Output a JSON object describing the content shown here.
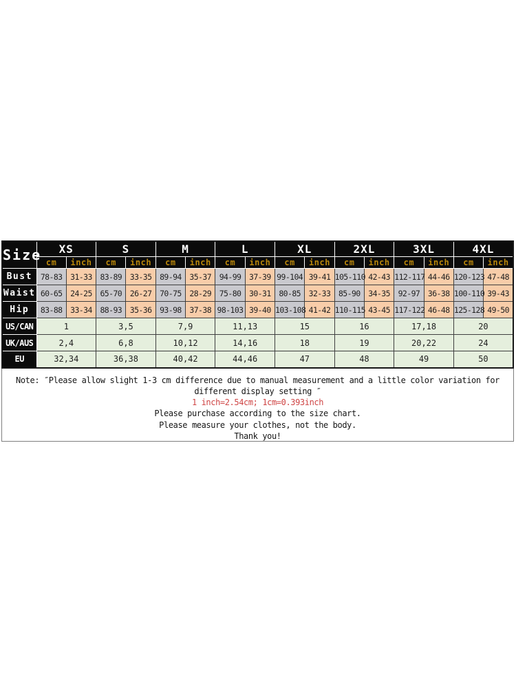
{
  "table": {
    "corner_label": "Size",
    "unit_labels": {
      "cm": "cm",
      "inch": "inch"
    },
    "sizes": [
      "XS",
      "S",
      "M",
      "L",
      "XL",
      "2XL",
      "3XL",
      "4XL"
    ],
    "measurements": [
      {
        "label": "Bust",
        "cm": [
          "78-83",
          "83-89",
          "89-94",
          "94-99",
          "99-104",
          "105-110",
          "112-117",
          "120-123"
        ],
        "inch": [
          "31-33",
          "33-35",
          "35-37",
          "37-39",
          "39-41",
          "42-43",
          "44-46",
          "47-48"
        ]
      },
      {
        "label": "Waist",
        "cm": [
          "60-65",
          "65-70",
          "70-75",
          "75-80",
          "80-85",
          "85-90",
          "92-97",
          "100-110"
        ],
        "inch": [
          "24-25",
          "26-27",
          "28-29",
          "30-31",
          "32-33",
          "34-35",
          "36-38",
          "39-43"
        ]
      },
      {
        "label": "Hip",
        "cm": [
          "83-88",
          "88-93",
          "93-98",
          "98-103",
          "103-108",
          "110-115",
          "117-122",
          "125-128"
        ],
        "inch": [
          "33-34",
          "35-36",
          "37-38",
          "39-40",
          "41-42",
          "43-45",
          "46-48",
          "49-50"
        ]
      }
    ],
    "regions": [
      {
        "label": "US/CAN",
        "values": [
          "1",
          "3,5",
          "7,9",
          "11,13",
          "15",
          "16",
          "17,18",
          "20"
        ]
      },
      {
        "label": "UK/AUS",
        "values": [
          "2,4",
          "6,8",
          "10,12",
          "14,16",
          "18",
          "19",
          "20,22",
          "24"
        ]
      },
      {
        "label": "EU",
        "values": [
          "32,34",
          "36,38",
          "40,42",
          "44,46",
          "47",
          "48",
          "49",
          "50"
        ]
      }
    ]
  },
  "note": {
    "lines": [
      "Note: ″Please allow slight 1-3 cm difference due to manual measurement and a little color variation for",
      "different display setting ″",
      "1 inch=2.54cm; 1cm=0.393inch",
      "Please purchase according to the size chart.",
      "Please measure your clothes, not the body.",
      "Thank you!"
    ]
  },
  "colors": {
    "bg_black": "#0b0b0b",
    "unit_gold": "#b8860b",
    "cm_gray": "#c9c9ce",
    "inch_peach": "#f8cda9",
    "region_green": "#e5efdd",
    "border_dark": "#3f3f3f",
    "note_red": "#cf4545",
    "note_border": "#7e7e7e"
  }
}
